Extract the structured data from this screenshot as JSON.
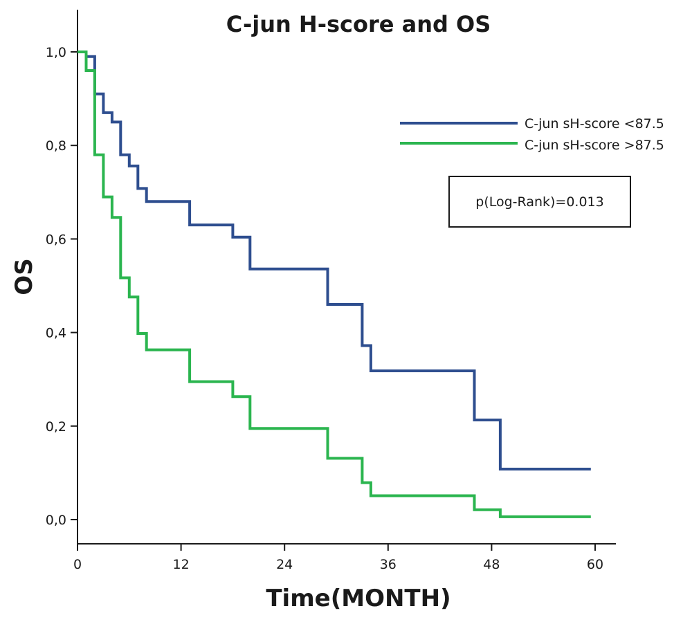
{
  "chart_data": {
    "type": "line",
    "subtype": "kaplan-meier-step",
    "title": "C-jun H-score and OS",
    "xlabel": "Time(MONTH)",
    "ylabel": "OS",
    "xlim": [
      0,
      62
    ],
    "ylim": [
      -0.05,
      1.1
    ],
    "x_ticks": [
      0,
      12,
      24,
      36,
      48,
      60
    ],
    "x_tick_labels": [
      "0",
      "12",
      "24",
      "36",
      "48",
      "60"
    ],
    "y_ticks": [
      0.0,
      0.2,
      0.4,
      0.6,
      0.8,
      1.0
    ],
    "y_tick_labels": [
      "0,0",
      "0,2",
      "0,4",
      "0,6",
      "0,8",
      "1,0"
    ],
    "grid": false,
    "legend_position": "top-right",
    "annotation": "p(Log-Rank)=0.013",
    "series": [
      {
        "name": "C-jun sH-score <87.5",
        "color": "#2e4e8f",
        "x": [
          0,
          1,
          2,
          3,
          4,
          5,
          6,
          7,
          8,
          13,
          18,
          20,
          29,
          33,
          34,
          46,
          49,
          59.5
        ],
        "y": [
          1.0,
          0.99,
          0.91,
          0.87,
          0.85,
          0.78,
          0.756,
          0.708,
          0.68,
          0.63,
          0.604,
          0.536,
          0.46,
          0.372,
          0.318,
          0.213,
          0.108,
          0.108
        ]
      },
      {
        "name": "C-jun sH-score >87.5",
        "color": "#2bb54f",
        "x": [
          0,
          1,
          2,
          3,
          4,
          5,
          6,
          7,
          8,
          13,
          18,
          20,
          29,
          33,
          34,
          46,
          49,
          59.5
        ],
        "y": [
          1.0,
          0.96,
          0.78,
          0.69,
          0.646,
          0.517,
          0.476,
          0.398,
          0.363,
          0.295,
          0.263,
          0.195,
          0.131,
          0.079,
          0.051,
          0.021,
          0.006,
          0.006
        ]
      }
    ]
  }
}
